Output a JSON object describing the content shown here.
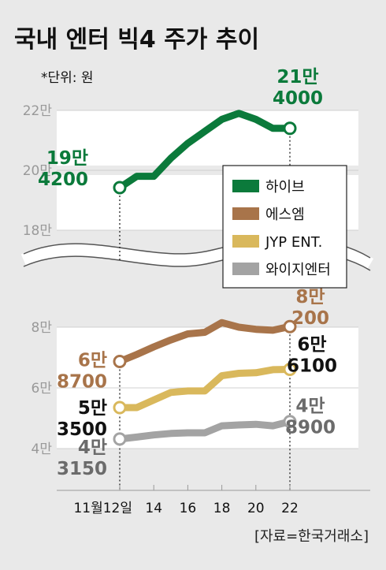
{
  "title": "국내 엔터 빅4 주가 추이",
  "unit": "*단위: 원",
  "source": "[자료=한국거래소]",
  "x_axis": {
    "ticks": [
      {
        "x": 12,
        "label": "11월12일"
      },
      {
        "x": 14,
        "label": "14"
      },
      {
        "x": 16,
        "label": "16"
      },
      {
        "x": 18,
        "label": "18"
      },
      {
        "x": 20,
        "label": "20"
      },
      {
        "x": 22,
        "label": "22"
      }
    ]
  },
  "colors": {
    "hybe": "#0b7a3b",
    "sm": "#a8744a",
    "jyp": "#d9b85c",
    "yg": "#a3a3a3",
    "grid_band": "#ffffff",
    "background": "#e9e9e9"
  },
  "legend": [
    {
      "key": "hybe",
      "label": "하이브",
      "color": "#0b7a3b"
    },
    {
      "key": "sm",
      "label": "에스엠",
      "color": "#a8744a"
    },
    {
      "key": "jyp",
      "label": "JYP ENT.",
      "color": "#d9b85c"
    },
    {
      "key": "yg",
      "label": "와이지엔터",
      "color": "#a3a3a3"
    }
  ],
  "chart_data": [
    {
      "type": "line",
      "panel": "upper",
      "y_ticks": [
        {
          "value": 220000,
          "label": "22만"
        },
        {
          "value": 200000,
          "label": "20만"
        },
        {
          "value": 180000,
          "label": "18만"
        }
      ],
      "series": [
        {
          "name": "하이브",
          "key": "hybe",
          "x": [
            12,
            13,
            14,
            15,
            16,
            17,
            18,
            19,
            20,
            21,
            22
          ],
          "values": [
            194200,
            198000,
            198000,
            204000,
            209000,
            213000,
            217000,
            219000,
            217000,
            214000,
            214000
          ],
          "start_label": [
            "19만",
            "4200"
          ],
          "end_label": [
            "21만",
            "4000"
          ]
        }
      ]
    },
    {
      "type": "line",
      "panel": "lower",
      "y_ticks": [
        {
          "value": 80000,
          "label": "8만"
        },
        {
          "value": 60000,
          "label": "6만"
        },
        {
          "value": 40000,
          "label": "4만"
        }
      ],
      "series": [
        {
          "name": "에스엠",
          "key": "sm",
          "x": [
            12,
            13,
            14,
            15,
            16,
            17,
            18,
            19,
            20,
            21,
            22
          ],
          "values": [
            68700,
            71000,
            73500,
            75800,
            77800,
            78300,
            81500,
            80000,
            79300,
            79000,
            80200
          ],
          "start_label": [
            "6만",
            "8700"
          ],
          "end_label": [
            "8만",
            "200"
          ]
        },
        {
          "name": "JYP ENT.",
          "key": "jyp",
          "x": [
            12,
            13,
            14,
            15,
            16,
            17,
            18,
            19,
            20,
            21,
            22
          ],
          "values": [
            53500,
            53500,
            56000,
            58500,
            59000,
            59000,
            64000,
            64800,
            65000,
            66000,
            66100
          ],
          "start_label": [
            "5만",
            "3500"
          ],
          "end_label": [
            "6만",
            "6100"
          ]
        },
        {
          "name": "와이지엔터",
          "key": "yg",
          "x": [
            12,
            13,
            14,
            15,
            16,
            17,
            18,
            19,
            20,
            21,
            22
          ],
          "values": [
            43150,
            43800,
            44500,
            45000,
            45200,
            45200,
            47500,
            47800,
            48000,
            47500,
            48900
          ],
          "start_label": [
            "4만",
            "3150"
          ],
          "end_label": [
            "4만",
            "8900"
          ]
        }
      ]
    }
  ]
}
